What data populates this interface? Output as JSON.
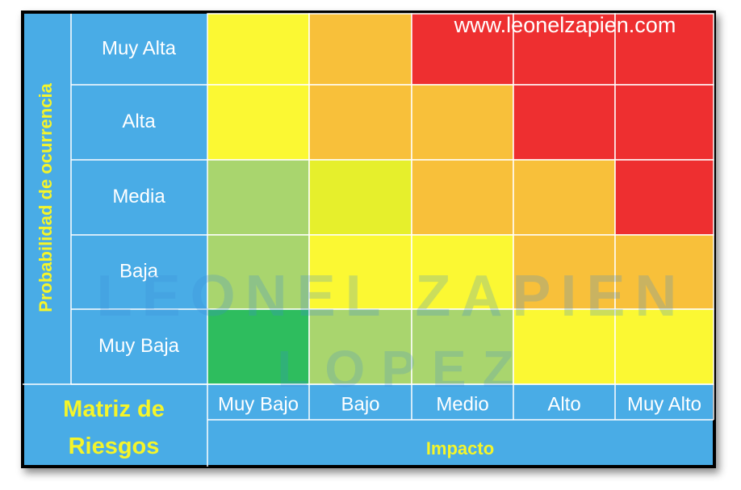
{
  "title": "Matriz de Riesgos",
  "y_axis_label": "Probabilidad de ocurrencia",
  "x_axis_label": "Impacto",
  "rows": [
    "Muy Alta",
    "Alta",
    "Media",
    "Baja",
    "Muy Baja"
  ],
  "columns": [
    "Muy Bajo",
    "Bajo",
    "Medio",
    "Alto",
    "Muy Alto"
  ],
  "cell_colors": [
    [
      "#fbf833",
      "#f8c03a",
      "#ee2f30",
      "#ee2f30",
      "#ee2f30"
    ],
    [
      "#fbf833",
      "#f8c03a",
      "#f8c03a",
      "#ee2f30",
      "#ee2f30"
    ],
    [
      "#a9d56e",
      "#e6ef2c",
      "#f8c03a",
      "#f8c03a",
      "#ee2f30"
    ],
    [
      "#a9d56e",
      "#fbf833",
      "#fbf833",
      "#f8c03a",
      "#f8c03a"
    ],
    [
      "#2ebd5e",
      "#a9d56e",
      "#a9d56e",
      "#fbf833",
      "#fbf833"
    ]
  ],
  "website": "www.leonelzapien.com",
  "watermark": [
    "LEONEL ZAPIEN",
    "LOPEZ"
  ]
}
